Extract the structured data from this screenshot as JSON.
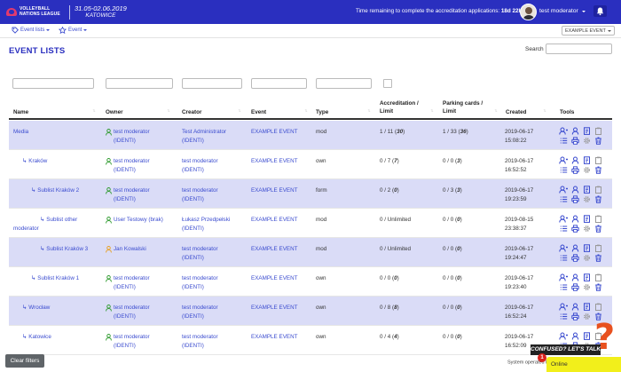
{
  "header": {
    "logo_text": "VOLLEYBALL NATIONS LEAGUE",
    "event_dates": "31.05-02.06.2019",
    "event_city": "KATOWICE",
    "remaining_label": "Time remaining to complete the accreditation applications:",
    "remaining_value": "18d 22h 33m",
    "user_name": "test moderator",
    "bell_icon": "bell-icon"
  },
  "subnav": {
    "event_lists": "Event lists",
    "event": "Event",
    "event_select": "EXAMPLE EVENT"
  },
  "page": {
    "title": "EVENT LISTS",
    "search_label": "Search"
  },
  "columns": {
    "name": "Name",
    "owner": "Owner",
    "creator": "Creator",
    "event": "Event",
    "type": "Type",
    "accreditation_1": "Accreditation /",
    "accreditation_2": "Limit",
    "parking_1": "Parking cards /",
    "parking_2": "Limit",
    "created": "Created",
    "tools": "Tools"
  },
  "rows": [
    {
      "name": "Media",
      "indent": 0,
      "owner": "test moderator",
      "owner_sub": "(IDENTI)",
      "owner_color": "#2e9a2e",
      "creator": "Test Administrator",
      "creator_sub": "(IDENTI)",
      "event": "EXAMPLE EVENT",
      "type": "mod",
      "accr": "1 / 11 (",
      "accr_b": "30",
      "park": "1 / 33 (",
      "park_b": "36",
      "date": "2019-06-17",
      "time": "15:08:22",
      "highlight": true
    },
    {
      "name": "Kraków",
      "indent": 1,
      "owner": "test moderator",
      "owner_sub": "(IDENTI)",
      "owner_color": "#2e9a2e",
      "creator": "test moderator",
      "creator_sub": "(IDENTI)",
      "event": "EXAMPLE EVENT",
      "type": "own",
      "accr": "0 / 7 (",
      "accr_b": "7",
      "park": "0 / 0 (",
      "park_b": "3",
      "date": "2019-06-17",
      "time": "16:52:52",
      "highlight": false
    },
    {
      "name": "Sublist Kraków 2",
      "indent": 2,
      "owner": "test moderator",
      "owner_sub": "(IDENTI)",
      "owner_color": "#2e9a2e",
      "creator": "test moderator",
      "creator_sub": "(IDENTI)",
      "event": "EXAMPLE EVENT",
      "type": "form",
      "accr": "0 / 2 (",
      "accr_b": "0",
      "park": "0 / 3 (",
      "park_b": "3",
      "date": "2019-06-17",
      "time": "19:23:59",
      "highlight": true
    },
    {
      "name": "Sublist other",
      "name2": "moderator",
      "indent": 3,
      "owner": "User Testowy (brak)",
      "owner_sub": "",
      "owner_color": "#2e9a2e",
      "creator": "Łukasz Przedpełski",
      "creator_sub": "(IDENTI)",
      "event": "EXAMPLE EVENT",
      "type": "mod",
      "accr": "0 / Unlimited",
      "accr_b": "",
      "park": "0 / 0 (",
      "park_b": "0",
      "date": "2019-08-15",
      "time": "23:38:37",
      "highlight": false
    },
    {
      "name": "Sublist Kraków 3",
      "indent": 3,
      "owner": "Jan Kowalski",
      "owner_sub": "",
      "owner_color": "#e8a020",
      "creator": "test moderator",
      "creator_sub": "(IDENTI)",
      "event": "EXAMPLE EVENT",
      "type": "mod",
      "accr": "0 / Unlimited",
      "accr_b": "",
      "park": "0 / 0 (",
      "park_b": "0",
      "date": "2019-06-17",
      "time": "19:24:47",
      "highlight": true
    },
    {
      "name": "Sublist Kraków 1",
      "indent": 2,
      "owner": "test moderator",
      "owner_sub": "(IDENTI)",
      "owner_color": "#2e9a2e",
      "creator": "test moderator",
      "creator_sub": "(IDENTI)",
      "event": "EXAMPLE EVENT",
      "type": "own",
      "accr": "0 / 0 (",
      "accr_b": "0",
      "park": "0 / 0 (",
      "park_b": "0",
      "date": "2019-06-17",
      "time": "19:23:40",
      "highlight": false
    },
    {
      "name": "Wrocław",
      "indent": 1,
      "owner": "test moderator",
      "owner_sub": "(IDENTI)",
      "owner_color": "#2e9a2e",
      "creator": "test moderator",
      "creator_sub": "(IDENTI)",
      "event": "EXAMPLE EVENT",
      "type": "own",
      "accr": "0 / 8 (",
      "accr_b": "8",
      "park": "0 / 0 (",
      "park_b": "0",
      "date": "2019-06-17",
      "time": "16:52:24",
      "highlight": true
    },
    {
      "name": "Katowice",
      "indent": 1,
      "owner": "test moderator",
      "owner_sub": "(IDENTI)",
      "owner_color": "#2e9a2e",
      "creator": "test moderator",
      "creator_sub": "(IDENTI)",
      "event": "EXAMPLE EVENT",
      "type": "own",
      "accr": "0 / 4 (",
      "accr_b": "4",
      "park": "0 / 0 (",
      "park_b": "0",
      "date": "2019-06-17",
      "time": "16:52:09",
      "highlight": false
    }
  ],
  "footer": {
    "clear_filters": "Clear filters",
    "system_operated": "System operated by",
    "confused": "CONFUSED? LET'S TALK",
    "online": "Online",
    "online_count": "1"
  },
  "colors": {
    "brand": "#2a2fbf",
    "link": "#3a4bcf",
    "row_highlight": "#dadcf7",
    "online": "#f2ef1b"
  }
}
